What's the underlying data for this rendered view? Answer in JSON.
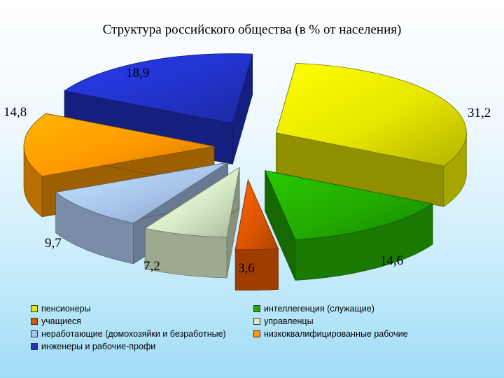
{
  "chart_data": {
    "type": "pie",
    "title": "Структура российского общества (в % от населения)",
    "slices": [
      {
        "label": "пенсионеры",
        "value": 31.2,
        "value_text": "31,2",
        "color": "#e6e600"
      },
      {
        "label": "интеллегенция (служащие)",
        "value": 14.6,
        "value_text": "14,6",
        "color": "#22aa00"
      },
      {
        "label": "учащиеся",
        "value": 3.6,
        "value_text": "3,6",
        "color": "#dd5500"
      },
      {
        "label": "управленцы",
        "value": 7.2,
        "value_text": "7,2",
        "color": "#d8ecc8"
      },
      {
        "label": "неработающие (домохозяйки и безработные)",
        "value": 9.7,
        "value_text": "9,7",
        "color": "#a8c4ea"
      },
      {
        "label": "низкоквалифицированные рабочие",
        "value": 14.8,
        "value_text": "14,8",
        "color": "#ff9900"
      },
      {
        "label": "инженеры и рабочие-профи",
        "value": 18.9,
        "value_text": "18,9",
        "color": "#2233cc"
      }
    ],
    "exploded": true,
    "three_d": true,
    "legend_position": "bottom"
  },
  "legend": {
    "items": [
      {
        "label": "пенсионеры",
        "color": "#e6e600"
      },
      {
        "label": "интеллегенция (служащие)",
        "color": "#22aa00"
      },
      {
        "label": "учащиеся",
        "color": "#dd5500"
      },
      {
        "label": "управленцы",
        "color": "#d8ecc8"
      },
      {
        "label": "неработающие (домохозяйки и безработные)",
        "color": "#a8c4ea"
      },
      {
        "label": "низкоквалифицированные рабочие",
        "color": "#ff9900"
      },
      {
        "label": "инженеры и рабочие-профи",
        "color": "#2233cc"
      }
    ]
  }
}
